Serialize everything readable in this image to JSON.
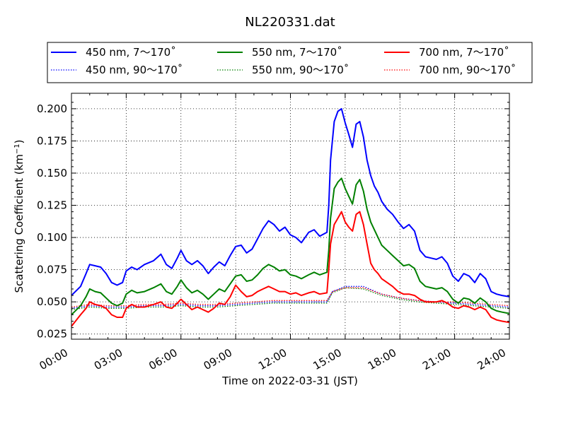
{
  "chart_data": {
    "type": "line",
    "title": "NL220331.dat",
    "xlabel": "Time on 2022-03-31 (JST)",
    "ylabel": "Scattering Coefficient (km",
    "ylabel_sup": "−1",
    "ylabel_close": ")",
    "xlim": [
      0,
      24
    ],
    "ylim": [
      0.021,
      0.212
    ],
    "x_unit": "hours",
    "x_ticks": [
      0,
      3,
      6,
      9,
      12,
      15,
      18,
      21,
      24
    ],
    "x_tick_labels": [
      "00:00",
      "03:00",
      "06:00",
      "09:00",
      "12:00",
      "15:00",
      "18:00",
      "21:00",
      "24:00"
    ],
    "y_ticks": [
      0.025,
      0.05,
      0.075,
      0.1,
      0.125,
      0.15,
      0.175,
      0.2
    ],
    "y_tick_labels": [
      "0.025",
      "0.050",
      "0.075",
      "0.100",
      "0.125",
      "0.150",
      "0.175",
      "0.200"
    ],
    "grid": true,
    "legend_position": "top-above",
    "series": [
      {
        "name": "450 nm, 7～170˚",
        "color": "#0000ff",
        "style": "solid",
        "x": [
          0,
          0.5,
          0.8,
          1,
          1.3,
          1.6,
          1.9,
          2.2,
          2.5,
          2.8,
          3,
          3.3,
          3.6,
          4,
          4.5,
          4.9,
          5.2,
          5.5,
          5.8,
          6,
          6.3,
          6.6,
          6.9,
          7.2,
          7.5,
          7.8,
          8.1,
          8.4,
          8.7,
          9,
          9.3,
          9.6,
          9.9,
          10.2,
          10.5,
          10.8,
          11.1,
          11.4,
          11.7,
          12,
          12.3,
          12.6,
          13,
          13.3,
          13.6,
          14,
          14.1,
          14.2,
          14.4,
          14.6,
          14.8,
          15,
          15.2,
          15.4,
          15.6,
          15.8,
          16,
          16.2,
          16.4,
          16.6,
          16.8,
          17,
          17.3,
          17.6,
          17.9,
          18.2,
          18.5,
          18.8,
          19.1,
          19.4,
          19.7,
          20,
          20.3,
          20.6,
          20.9,
          21.2,
          21.5,
          21.8,
          22.1,
          22.4,
          22.7,
          23,
          23.3,
          23.6,
          24
        ],
        "y": [
          0.055,
          0.062,
          0.072,
          0.079,
          0.078,
          0.077,
          0.072,
          0.065,
          0.063,
          0.065,
          0.074,
          0.077,
          0.075,
          0.079,
          0.082,
          0.087,
          0.079,
          0.076,
          0.084,
          0.09,
          0.082,
          0.079,
          0.082,
          0.078,
          0.072,
          0.077,
          0.081,
          0.078,
          0.086,
          0.093,
          0.094,
          0.088,
          0.091,
          0.099,
          0.107,
          0.113,
          0.11,
          0.105,
          0.108,
          0.102,
          0.1,
          0.096,
          0.104,
          0.106,
          0.101,
          0.104,
          0.125,
          0.16,
          0.19,
          0.198,
          0.2,
          0.189,
          0.18,
          0.17,
          0.188,
          0.19,
          0.178,
          0.16,
          0.148,
          0.14,
          0.135,
          0.128,
          0.122,
          0.118,
          0.112,
          0.107,
          0.11,
          0.105,
          0.09,
          0.085,
          0.084,
          0.083,
          0.085,
          0.08,
          0.07,
          0.066,
          0.072,
          0.07,
          0.065,
          0.072,
          0.068,
          0.058,
          0.056,
          0.055,
          0.054
        ]
      },
      {
        "name": "550 nm, 7～170˚",
        "color": "#008000",
        "style": "solid",
        "x": [
          0,
          0.5,
          0.8,
          1,
          1.3,
          1.6,
          1.9,
          2.2,
          2.5,
          2.8,
          3,
          3.3,
          3.6,
          4,
          4.5,
          4.9,
          5.2,
          5.5,
          5.8,
          6,
          6.3,
          6.6,
          6.9,
          7.2,
          7.5,
          7.8,
          8.1,
          8.4,
          8.7,
          9,
          9.3,
          9.6,
          9.9,
          10.2,
          10.5,
          10.8,
          11.1,
          11.4,
          11.7,
          12,
          12.3,
          12.6,
          13,
          13.3,
          13.6,
          14,
          14.1,
          14.2,
          14.4,
          14.6,
          14.8,
          15,
          15.2,
          15.4,
          15.6,
          15.8,
          16,
          16.2,
          16.4,
          16.6,
          16.8,
          17,
          17.3,
          17.6,
          17.9,
          18.2,
          18.5,
          18.8,
          19.1,
          19.4,
          19.7,
          20,
          20.3,
          20.6,
          20.9,
          21.2,
          21.5,
          21.8,
          22.1,
          22.4,
          22.7,
          23,
          23.3,
          23.6,
          24
        ],
        "y": [
          0.04,
          0.047,
          0.054,
          0.06,
          0.058,
          0.057,
          0.053,
          0.049,
          0.047,
          0.049,
          0.056,
          0.059,
          0.057,
          0.058,
          0.061,
          0.064,
          0.058,
          0.056,
          0.062,
          0.067,
          0.061,
          0.057,
          0.059,
          0.056,
          0.052,
          0.056,
          0.06,
          0.058,
          0.064,
          0.07,
          0.071,
          0.066,
          0.067,
          0.071,
          0.076,
          0.079,
          0.077,
          0.074,
          0.075,
          0.071,
          0.07,
          0.068,
          0.071,
          0.073,
          0.071,
          0.073,
          0.09,
          0.115,
          0.138,
          0.143,
          0.146,
          0.138,
          0.132,
          0.126,
          0.141,
          0.145,
          0.136,
          0.122,
          0.112,
          0.106,
          0.1,
          0.094,
          0.09,
          0.086,
          0.082,
          0.078,
          0.079,
          0.076,
          0.066,
          0.062,
          0.061,
          0.06,
          0.061,
          0.058,
          0.052,
          0.049,
          0.053,
          0.052,
          0.049,
          0.053,
          0.05,
          0.045,
          0.043,
          0.042,
          0.041
        ]
      },
      {
        "name": "700 nm, 7～170˚",
        "color": "#ff0000",
        "style": "solid",
        "x": [
          0,
          0.5,
          0.8,
          1,
          1.3,
          1.6,
          1.9,
          2.2,
          2.5,
          2.8,
          3,
          3.3,
          3.6,
          4,
          4.5,
          4.9,
          5.2,
          5.5,
          5.8,
          6,
          6.3,
          6.6,
          6.9,
          7.2,
          7.5,
          7.8,
          8.1,
          8.4,
          8.7,
          9,
          9.3,
          9.6,
          9.9,
          10.2,
          10.5,
          10.8,
          11.1,
          11.4,
          11.7,
          12,
          12.3,
          12.6,
          13,
          13.3,
          13.6,
          14,
          14.1,
          14.2,
          14.4,
          14.6,
          14.8,
          15,
          15.2,
          15.4,
          15.6,
          15.8,
          16,
          16.2,
          16.4,
          16.6,
          16.8,
          17,
          17.3,
          17.6,
          17.9,
          18.2,
          18.5,
          18.8,
          19.1,
          19.4,
          19.7,
          20,
          20.3,
          20.6,
          20.9,
          21.2,
          21.5,
          21.8,
          22.1,
          22.4,
          22.7,
          23,
          23.3,
          23.6,
          24
        ],
        "y": [
          0.031,
          0.04,
          0.045,
          0.05,
          0.048,
          0.047,
          0.045,
          0.04,
          0.038,
          0.038,
          0.045,
          0.048,
          0.046,
          0.046,
          0.048,
          0.05,
          0.046,
          0.045,
          0.049,
          0.052,
          0.048,
          0.044,
          0.046,
          0.044,
          0.042,
          0.045,
          0.049,
          0.048,
          0.054,
          0.063,
          0.058,
          0.054,
          0.055,
          0.058,
          0.06,
          0.062,
          0.06,
          0.058,
          0.058,
          0.056,
          0.057,
          0.055,
          0.057,
          0.058,
          0.056,
          0.057,
          0.075,
          0.095,
          0.11,
          0.115,
          0.12,
          0.112,
          0.108,
          0.105,
          0.118,
          0.12,
          0.11,
          0.095,
          0.08,
          0.075,
          0.072,
          0.068,
          0.065,
          0.062,
          0.058,
          0.056,
          0.056,
          0.055,
          0.052,
          0.05,
          0.05,
          0.05,
          0.051,
          0.049,
          0.046,
          0.045,
          0.047,
          0.046,
          0.044,
          0.046,
          0.044,
          0.038,
          0.036,
          0.035,
          0.034
        ]
      },
      {
        "name": "450 nm, 90～170˚",
        "color": "#0000ff",
        "style": "dotted",
        "x": [
          0,
          1,
          2,
          3,
          4,
          5,
          6,
          7,
          8,
          9,
          10,
          11,
          12,
          13,
          14,
          14.3,
          15,
          16,
          17,
          18,
          19,
          20,
          21,
          22,
          23,
          24
        ],
        "y": [
          0.045,
          0.047,
          0.046,
          0.046,
          0.047,
          0.047,
          0.048,
          0.047,
          0.047,
          0.048,
          0.049,
          0.05,
          0.05,
          0.05,
          0.05,
          0.058,
          0.062,
          0.062,
          0.056,
          0.053,
          0.051,
          0.05,
          0.049,
          0.048,
          0.047,
          0.046
        ]
      },
      {
        "name": "550 nm, 90～170˚",
        "color": "#008000",
        "style": "dotted",
        "x": [
          0,
          1,
          2,
          3,
          4,
          5,
          6,
          7,
          8,
          9,
          10,
          11,
          12,
          13,
          14,
          14.3,
          15,
          16,
          17,
          18,
          19,
          20,
          21,
          22,
          23,
          24
        ],
        "y": [
          0.044,
          0.046,
          0.045,
          0.045,
          0.046,
          0.046,
          0.047,
          0.046,
          0.046,
          0.047,
          0.048,
          0.049,
          0.049,
          0.049,
          0.049,
          0.057,
          0.061,
          0.06,
          0.055,
          0.052,
          0.05,
          0.049,
          0.048,
          0.047,
          0.046,
          0.045
        ]
      },
      {
        "name": "700 nm, 90～170˚",
        "color": "#ff0000",
        "style": "dotted",
        "x": [
          0,
          1,
          2,
          3,
          4,
          5,
          6,
          7,
          8,
          9,
          10,
          11,
          12,
          13,
          14,
          14.3,
          15,
          16,
          17,
          18,
          19,
          20,
          21,
          22,
          23,
          24
        ],
        "y": [
          0.046,
          0.048,
          0.047,
          0.047,
          0.048,
          0.048,
          0.049,
          0.048,
          0.048,
          0.049,
          0.05,
          0.051,
          0.051,
          0.051,
          0.051,
          0.058,
          0.061,
          0.061,
          0.056,
          0.053,
          0.051,
          0.05,
          0.05,
          0.049,
          0.048,
          0.047
        ]
      }
    ]
  }
}
